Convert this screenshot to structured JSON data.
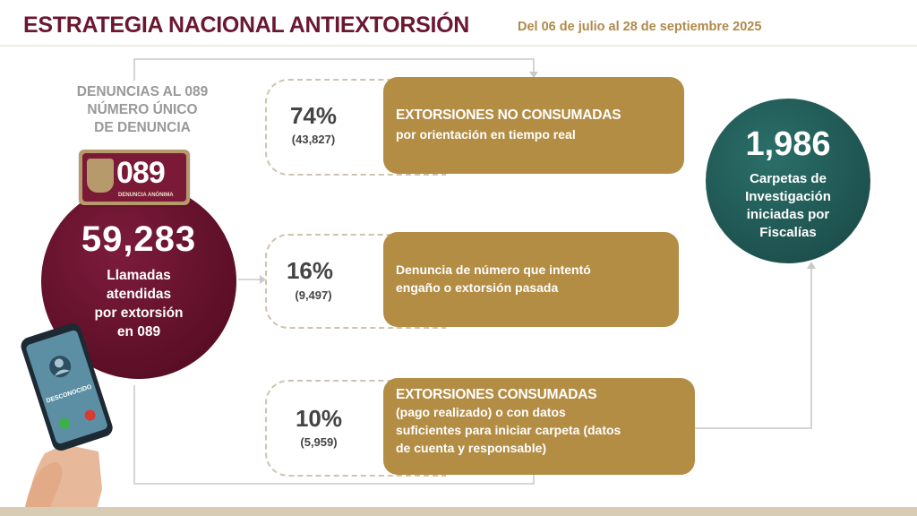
{
  "header": {
    "title": "ESTRATEGIA NACIONAL ANTIEXTORSIÓN",
    "date_range": "Del 06 de julio al 28 de septiembre 2025"
  },
  "left_panel": {
    "caption_line1": "DENUNCIAS AL 089",
    "caption_line2": "NÚMERO ÚNICO",
    "caption_line3": "DE DENUNCIA",
    "logo_number": "089",
    "logo_tag": "DENUNCIA ANÓNIMA",
    "calls_number": "59,283",
    "calls_label_1": "Llamadas",
    "calls_label_2": "atendidas",
    "calls_label_3": "por extorsión",
    "calls_label_4": "en 089",
    "phone_caller": "DESCONOCIDO"
  },
  "results": [
    {
      "percent": "74%",
      "count": "(43,827)",
      "title": "EXTORSIONES NO CONSUMADAS",
      "text_1": "por orientación en tiempo real",
      "text_2": "",
      "text_3": ""
    },
    {
      "percent": "16%",
      "count": "(9,497)",
      "title": "",
      "text_1": "Denuncia de número que intentó",
      "text_2": "engaño o extorsión pasada",
      "text_3": ""
    },
    {
      "percent": "10%",
      "count": "(5,959)",
      "title": "EXTORSIONES CONSUMADAS",
      "text_1": "(pago realizado) o con datos",
      "text_2": "suficientes para iniciar carpeta (datos",
      "text_3": "de cuenta y responsable)"
    }
  ],
  "right_panel": {
    "carpetas_number": "1,986",
    "carpetas_label_1": "Carpetas de",
    "carpetas_label_2": "Investigación",
    "carpetas_label_3": "iniciadas por",
    "carpetas_label_4": "Fiscalías"
  },
  "colors": {
    "title": "#6b1732",
    "accent_gold": "#b48d45",
    "maroon": "#5c0f27",
    "teal": "#1d504d"
  }
}
